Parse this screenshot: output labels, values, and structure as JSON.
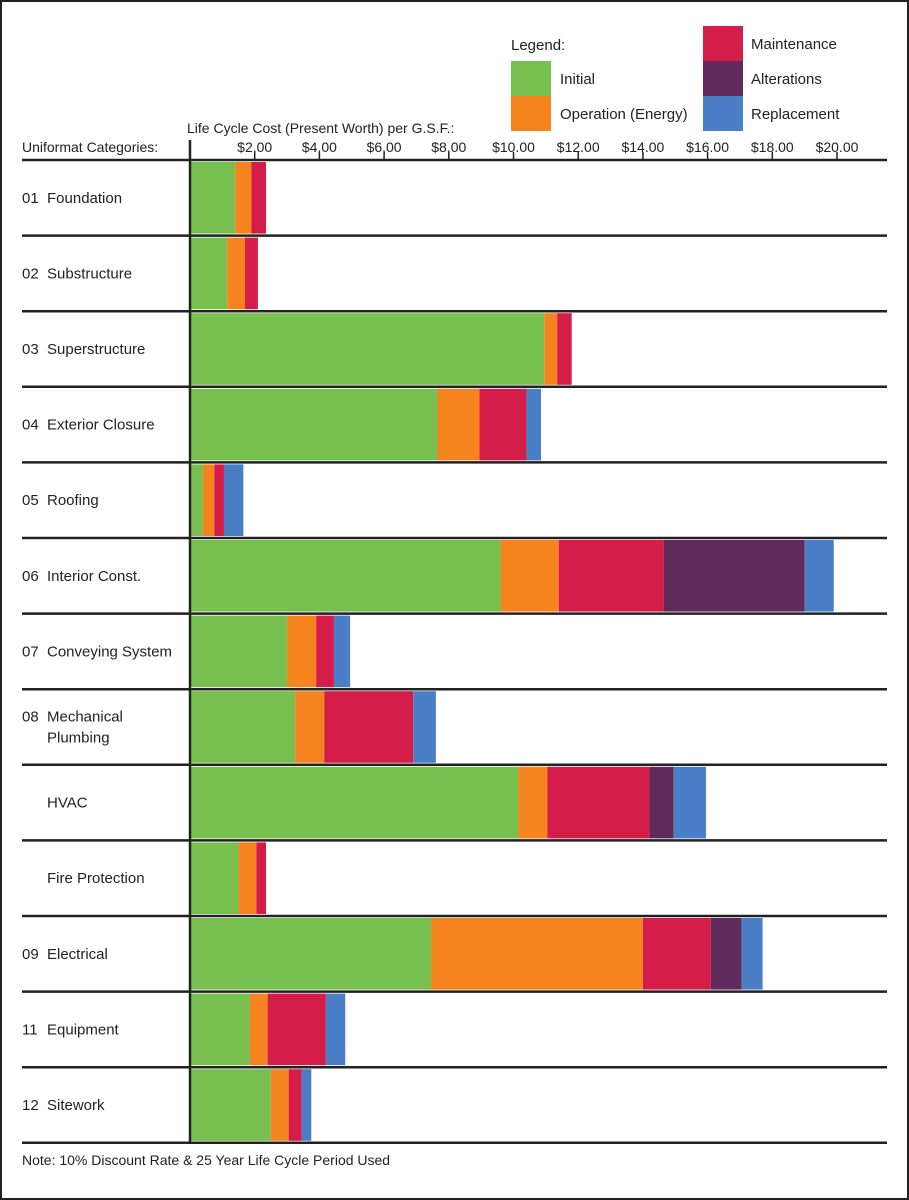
{
  "legend": {
    "title": "Legend:",
    "items": [
      {
        "name": "Initial",
        "color": "#77c04f"
      },
      {
        "name": "Operation (Energy)",
        "color": "#f5841f"
      },
      {
        "name": "Maintenance",
        "color": "#d41e49"
      },
      {
        "name": "Alterations",
        "color": "#612a5c"
      },
      {
        "name": "Replacement",
        "color": "#4a7fc8"
      }
    ]
  },
  "axis_title": "Life Cycle Cost (Present Worth) per G.S.F.:",
  "category_header": "Uniformat Categories:",
  "note": "Note: 10% Discount Rate & 25 Year Life Cycle Period Used",
  "chart_data": {
    "type": "bar",
    "orientation": "horizontal",
    "stacked": true,
    "xlabel": "Life Cycle Cost (Present Worth) per G.S.F.:",
    "ylabel": "Uniformat Categories:",
    "xlim": [
      0,
      21.5
    ],
    "xticks": [
      2,
      4,
      6,
      8,
      10,
      12,
      14,
      16,
      18,
      20
    ],
    "xtick_labels": [
      "$2.00",
      "$4.00",
      "$6.00",
      "$8.00",
      "$10.00",
      "$12.00",
      "$14.00",
      "$16.00",
      "$18.00",
      "$20.00"
    ],
    "legend_position": "top-right",
    "series_names": [
      "Initial",
      "Operation (Energy)",
      "Maintenance",
      "Alterations",
      "Replacement"
    ],
    "categories": [
      {
        "label": [
          "01",
          "Foundation"
        ],
        "values": [
          1.4,
          0.5,
          0.45,
          0,
          0
        ]
      },
      {
        "label": [
          "02",
          "Substructure"
        ],
        "values": [
          1.15,
          0.55,
          0.4,
          0,
          0
        ]
      },
      {
        "label": [
          "03",
          "Superstructure"
        ],
        "values": [
          10.95,
          0.4,
          0.45,
          0,
          0
        ]
      },
      {
        "label": [
          "04",
          "Exterior Closure"
        ],
        "values": [
          7.65,
          1.3,
          1.45,
          0,
          0.45
        ]
      },
      {
        "label": [
          "05",
          "Roofing"
        ],
        "values": [
          0.4,
          0.35,
          0.3,
          0,
          0.6
        ]
      },
      {
        "label": [
          "06",
          "Interior Const."
        ],
        "values": [
          9.6,
          1.8,
          3.25,
          4.35,
          0.9
        ]
      },
      {
        "label": [
          "07",
          "Conveying System"
        ],
        "values": [
          3.0,
          0.9,
          0.55,
          0,
          0.5
        ]
      },
      {
        "label": [
          "08",
          "Mechanical",
          "Plumbing"
        ],
        "values": [
          3.25,
          0.9,
          2.75,
          0,
          0.7
        ]
      },
      {
        "label": [
          "",
          "HVAC"
        ],
        "values": [
          10.15,
          0.9,
          3.15,
          0.75,
          1.0
        ]
      },
      {
        "label": [
          "",
          "Fire Protection"
        ],
        "values": [
          1.5,
          0.55,
          0.3,
          0,
          0
        ]
      },
      {
        "label": [
          "09",
          "Electrical"
        ],
        "values": [
          7.45,
          6.55,
          2.1,
          0.95,
          0.65
        ]
      },
      {
        "label": [
          "11",
          "Equipment"
        ],
        "values": [
          1.85,
          0.55,
          1.8,
          0,
          0.6
        ]
      },
      {
        "label": [
          "12",
          "Sitework"
        ],
        "values": [
          2.5,
          0.55,
          0.4,
          0,
          0.3
        ]
      }
    ]
  }
}
